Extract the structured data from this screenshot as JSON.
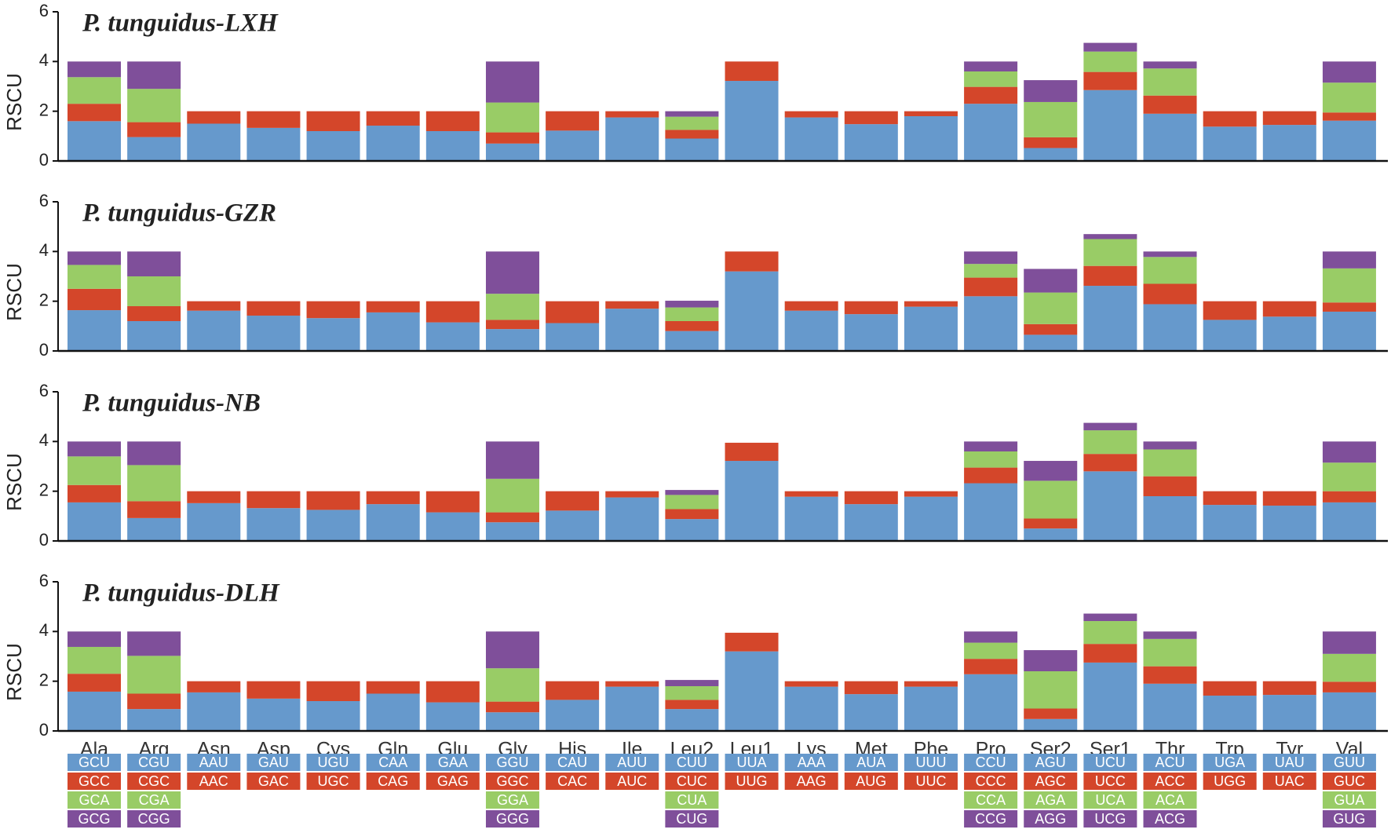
{
  "chart_data": [
    {
      "type": "bar",
      "stacked": true,
      "title": "P. tunguidus-LXH",
      "ylabel": "RSCU",
      "ylim": [
        0,
        6
      ],
      "yticks": [
        0,
        2,
        4,
        6
      ],
      "series": [
        {
          "color": "#6699cc",
          "values": [
            1.6,
            0.96,
            1.5,
            1.33,
            1.2,
            1.42,
            1.2,
            0.7,
            1.22,
            1.75,
            0.9,
            3.22,
            1.75,
            1.48,
            1.8,
            2.3,
            0.52,
            2.85,
            1.9,
            1.38,
            1.45,
            1.62
          ]
        },
        {
          "color": "#d4462a",
          "values": [
            0.7,
            0.6,
            0.5,
            0.67,
            0.8,
            0.58,
            0.8,
            0.45,
            0.78,
            0.25,
            0.35,
            0.78,
            0.25,
            0.52,
            0.2,
            0.68,
            0.43,
            0.73,
            0.73,
            0.62,
            0.55,
            0.33
          ]
        },
        {
          "color": "#99cc66",
          "values": [
            1.07,
            1.34,
            null,
            null,
            null,
            null,
            null,
            1.2,
            null,
            null,
            0.53,
            null,
            null,
            null,
            null,
            0.62,
            1.42,
            0.82,
            1.09,
            null,
            null,
            1.2
          ]
        },
        {
          "color": "#7f4f9a",
          "values": [
            0.63,
            1.1,
            null,
            null,
            null,
            null,
            null,
            1.65,
            null,
            null,
            0.22,
            null,
            null,
            null,
            null,
            0.4,
            0.88,
            0.35,
            0.28,
            null,
            null,
            0.85
          ]
        }
      ]
    },
    {
      "type": "bar",
      "stacked": true,
      "title": "P. tunguidus-GZR",
      "ylabel": "RSCU",
      "ylim": [
        0,
        6
      ],
      "yticks": [
        0,
        2,
        4,
        6
      ],
      "series": [
        {
          "color": "#6699cc",
          "values": [
            1.64,
            1.2,
            1.62,
            1.42,
            1.32,
            1.55,
            1.15,
            0.88,
            1.12,
            1.7,
            0.8,
            3.2,
            1.62,
            1.48,
            1.78,
            2.2,
            0.65,
            2.62,
            1.88,
            1.25,
            1.38,
            1.58
          ]
        },
        {
          "color": "#d4462a",
          "values": [
            0.86,
            0.6,
            0.38,
            0.58,
            0.68,
            0.45,
            0.85,
            0.37,
            0.88,
            0.3,
            0.4,
            0.8,
            0.38,
            0.52,
            0.22,
            0.75,
            0.43,
            0.8,
            0.82,
            0.75,
            0.62,
            0.37
          ]
        },
        {
          "color": "#99cc66",
          "values": [
            0.96,
            1.2,
            null,
            null,
            null,
            null,
            null,
            1.05,
            null,
            null,
            0.55,
            null,
            null,
            null,
            null,
            0.55,
            1.27,
            1.08,
            1.08,
            null,
            null,
            1.37
          ]
        },
        {
          "color": "#7f4f9a",
          "values": [
            0.54,
            1.0,
            null,
            null,
            null,
            null,
            null,
            1.7,
            null,
            null,
            0.27,
            null,
            null,
            null,
            null,
            0.5,
            0.95,
            0.2,
            0.22,
            null,
            null,
            0.68
          ]
        }
      ]
    },
    {
      "type": "bar",
      "stacked": true,
      "title": "P. tunguidus-NB",
      "ylabel": "RSCU",
      "ylim": [
        0,
        6
      ],
      "yticks": [
        0,
        2,
        4,
        6
      ],
      "series": [
        {
          "color": "#6699cc",
          "values": [
            1.55,
            0.92,
            1.52,
            1.32,
            1.25,
            1.48,
            1.15,
            0.75,
            1.22,
            1.75,
            0.88,
            3.22,
            1.78,
            1.48,
            1.78,
            2.32,
            0.5,
            2.8,
            1.8,
            1.45,
            1.42,
            1.55
          ]
        },
        {
          "color": "#d4462a",
          "values": [
            0.7,
            0.68,
            0.48,
            0.68,
            0.75,
            0.52,
            0.85,
            0.4,
            0.78,
            0.25,
            0.4,
            0.73,
            0.22,
            0.52,
            0.22,
            0.63,
            0.4,
            0.7,
            0.8,
            0.55,
            0.58,
            0.45
          ]
        },
        {
          "color": "#99cc66",
          "values": [
            1.15,
            1.45,
            null,
            null,
            null,
            null,
            null,
            1.35,
            null,
            null,
            0.57,
            null,
            null,
            null,
            null,
            0.65,
            1.52,
            0.95,
            1.08,
            null,
            null,
            1.15
          ]
        },
        {
          "color": "#7f4f9a",
          "values": [
            0.6,
            0.95,
            null,
            null,
            null,
            null,
            null,
            1.5,
            null,
            null,
            0.2,
            null,
            null,
            null,
            null,
            0.4,
            0.8,
            0.3,
            0.32,
            null,
            null,
            0.85
          ]
        }
      ]
    },
    {
      "type": "bar",
      "stacked": true,
      "title": "P. tunguidus-DLH",
      "ylabel": "RSCU",
      "ylim": [
        0,
        6
      ],
      "yticks": [
        0,
        2,
        4,
        6
      ],
      "categories": [
        "Ala",
        "Arg",
        "Asn",
        "Asp",
        "Cys",
        "Gln",
        "Glu",
        "Gly",
        "His",
        "Ile",
        "Leu2",
        "Leu1",
        "Lys",
        "Met",
        "Phe",
        "Pro",
        "Ser2",
        "Ser1",
        "Thr",
        "Trp",
        "Tyr",
        "Val"
      ],
      "series": [
        {
          "color": "#6699cc",
          "values": [
            1.58,
            0.88,
            1.55,
            1.3,
            1.2,
            1.5,
            1.15,
            0.75,
            1.25,
            1.78,
            0.88,
            3.2,
            1.78,
            1.48,
            1.78,
            2.28,
            0.48,
            2.75,
            1.9,
            1.42,
            1.45,
            1.55
          ]
        },
        {
          "color": "#d4462a",
          "values": [
            0.72,
            0.62,
            0.45,
            0.7,
            0.8,
            0.5,
            0.85,
            0.43,
            0.75,
            0.22,
            0.37,
            0.75,
            0.22,
            0.52,
            0.22,
            0.62,
            0.42,
            0.75,
            0.7,
            0.58,
            0.55,
            0.43
          ]
        },
        {
          "color": "#99cc66",
          "values": [
            1.08,
            1.52,
            null,
            null,
            null,
            null,
            null,
            1.34,
            null,
            null,
            0.55,
            null,
            null,
            null,
            null,
            0.65,
            1.5,
            0.92,
            1.1,
            null,
            null,
            1.12
          ]
        },
        {
          "color": "#7f4f9a",
          "values": [
            0.62,
            0.98,
            null,
            null,
            null,
            null,
            null,
            1.48,
            null,
            null,
            0.25,
            null,
            null,
            null,
            null,
            0.45,
            0.85,
            0.3,
            0.3,
            null,
            null,
            0.9
          ]
        }
      ]
    }
  ],
  "codon_table": [
    [
      "GCU",
      "GCC",
      "GCA",
      "GCG"
    ],
    [
      "CGU",
      "CGC",
      "CGA",
      "CGG"
    ],
    [
      "AAU",
      "AAC"
    ],
    [
      "GAU",
      "GAC"
    ],
    [
      "UGU",
      "UGC"
    ],
    [
      "CAA",
      "CAG"
    ],
    [
      "GAA",
      "GAG"
    ],
    [
      "GGU",
      "GGC",
      "GGA",
      "GGG"
    ],
    [
      "CAU",
      "CAC"
    ],
    [
      "AUU",
      "AUC"
    ],
    [
      "CUU",
      "CUC",
      "CUA",
      "CUG"
    ],
    [
      "UUA",
      "UUG"
    ],
    [
      "AAA",
      "AAG"
    ],
    [
      "AUA",
      "AUG"
    ],
    [
      "UUU",
      "UUC"
    ],
    [
      "CCU",
      "CCC",
      "CCA",
      "CCG"
    ],
    [
      "AGU",
      "AGC",
      "AGA",
      "AGG"
    ],
    [
      "UCU",
      "UCC",
      "UCA",
      "UCG"
    ],
    [
      "ACU",
      "ACC",
      "ACA",
      "ACG"
    ],
    [
      "UGA",
      "UGG"
    ],
    [
      "UAU",
      "UAC"
    ],
    [
      "GUU",
      "GUC",
      "GUA",
      "GUG"
    ]
  ]
}
